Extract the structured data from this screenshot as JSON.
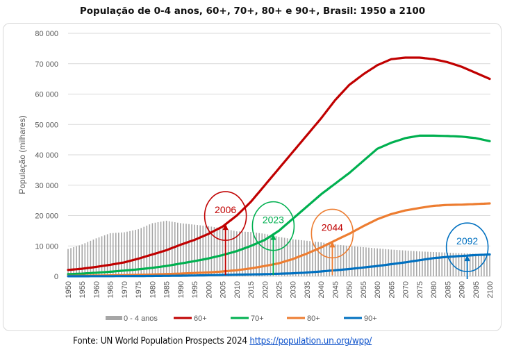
{
  "title": "População de 0-4 anos, 60+, 70+, 80+ e 90+, Brasil: 1950 a 2100",
  "source": {
    "prefix": "Fonte: UN World Population Prospects 2024 ",
    "link_text": "https://population.un.org/wpp/"
  },
  "chart_data": {
    "type": "line",
    "title": "População de 0-4 anos, 60+, 70+, 80+ e 90+, Brasil: 1950 a 2100",
    "xlabel": "",
    "ylabel": "População (milhares)",
    "xlim": [
      1950,
      2100
    ],
    "ylim": [
      0,
      80000
    ],
    "yticks": [
      0,
      10000,
      20000,
      30000,
      40000,
      50000,
      60000,
      70000,
      80000
    ],
    "ytick_labels": [
      "0",
      "10 000",
      "20 000",
      "30 000",
      "40 000",
      "50 000",
      "60 000",
      "70 000",
      "80 000"
    ],
    "xticks": [
      1950,
      1955,
      1960,
      1965,
      1970,
      1975,
      1980,
      1985,
      1990,
      1995,
      2000,
      2005,
      2010,
      2015,
      2020,
      2025,
      2030,
      2035,
      2040,
      2045,
      2050,
      2055,
      2060,
      2065,
      2070,
      2075,
      2080,
      2085,
      2090,
      2095,
      2100
    ],
    "grid": true,
    "legend_position": "bottom",
    "x": [
      1950,
      1955,
      1960,
      1965,
      1970,
      1975,
      1980,
      1985,
      1990,
      1995,
      2000,
      2005,
      2010,
      2015,
      2020,
      2025,
      2030,
      2035,
      2040,
      2045,
      2050,
      2055,
      2060,
      2065,
      2070,
      2075,
      2080,
      2085,
      2090,
      2095,
      2100
    ],
    "series": [
      {
        "name": "0 - 4 anos",
        "kind": "bar",
        "color": "#a6a6a6",
        "values": [
          9000,
          10500,
          12500,
          14200,
          14500,
          15500,
          17500,
          18300,
          17500,
          17000,
          16500,
          15800,
          14800,
          14600,
          14000,
          13000,
          12200,
          11700,
          11200,
          10500,
          10000,
          9600,
          9200,
          8800,
          8500,
          8200,
          8000,
          7800,
          7600,
          7400,
          7200
        ]
      },
      {
        "name": "60+",
        "kind": "line",
        "color": "#c00000",
        "values": [
          2100,
          2500,
          3100,
          3800,
          4600,
          5800,
          7200,
          8600,
          10400,
          12000,
          14000,
          16400,
          20000,
          24500,
          30000,
          35500,
          41000,
          46500,
          52000,
          58000,
          63000,
          66500,
          69500,
          71500,
          72000,
          72000,
          71500,
          70500,
          69000,
          67000,
          65000
        ]
      },
      {
        "name": "70+",
        "kind": "line",
        "color": "#00b050",
        "values": [
          700,
          900,
          1200,
          1500,
          1900,
          2300,
          2800,
          3400,
          4200,
          5000,
          5900,
          7000,
          8300,
          10000,
          12000,
          15000,
          19000,
          23000,
          27000,
          30500,
          34000,
          38000,
          42000,
          44000,
          45500,
          46300,
          46300,
          46200,
          46000,
          45500,
          44500
        ]
      },
      {
        "name": "80+",
        "kind": "line",
        "color": "#ed7d31",
        "values": [
          150,
          200,
          250,
          320,
          400,
          500,
          600,
          750,
          900,
          1100,
          1300,
          1600,
          2000,
          2600,
          3400,
          4300,
          5700,
          7500,
          9500,
          11800,
          14000,
          16500,
          18800,
          20500,
          21700,
          22500,
          23200,
          23500,
          23600,
          23800,
          24000
        ]
      },
      {
        "name": "90+",
        "kind": "line",
        "color": "#0070c0",
        "values": [
          20,
          30,
          40,
          50,
          70,
          90,
          120,
          160,
          210,
          280,
          360,
          450,
          550,
          620,
          700,
          850,
          1000,
          1250,
          1600,
          2000,
          2400,
          2900,
          3400,
          4000,
          4600,
          5300,
          6000,
          6400,
          6700,
          7000,
          7200
        ]
      }
    ],
    "annotations": [
      {
        "label": "2006",
        "year": 2006,
        "series": "60+",
        "color": "#c00000",
        "text_color": "#c00000"
      },
      {
        "label": "2023",
        "year": 2023,
        "series": "70+",
        "color": "#00b050",
        "text_color": "#00b050"
      },
      {
        "label": "2044",
        "year": 2044,
        "series": "80+",
        "color": "#ed7d31",
        "text_color": "#c00000"
      },
      {
        "label": "2092",
        "year": 2092,
        "series": "90+",
        "color": "#0070c0",
        "text_color": "#0070c0"
      }
    ]
  }
}
